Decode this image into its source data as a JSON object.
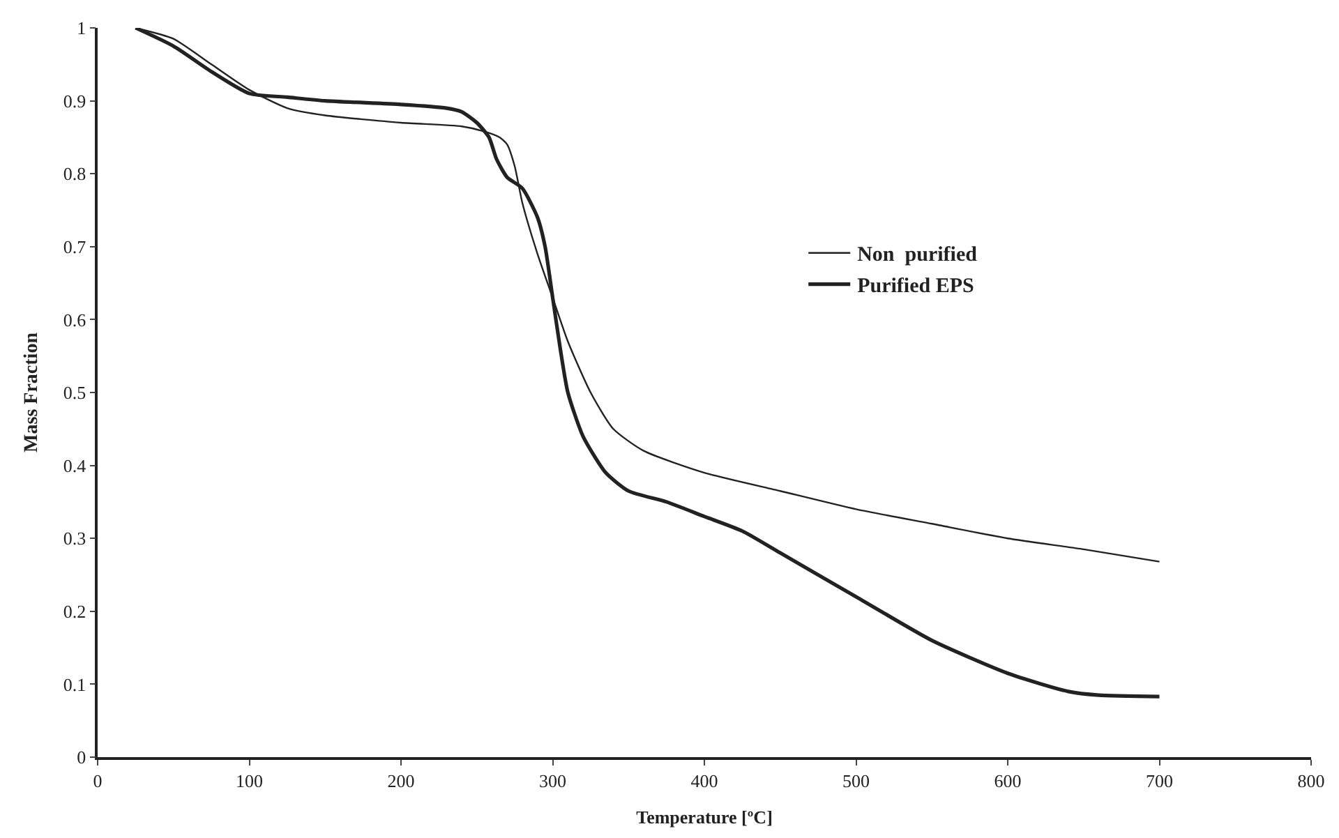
{
  "chart_data": {
    "type": "line",
    "xlabel": "Temperature [ºC]",
    "ylabel": "Mass Fraction",
    "xlim": [
      0,
      800
    ],
    "xticks": [
      0,
      100,
      200,
      300,
      400,
      500,
      600,
      700,
      800
    ],
    "ylim": [
      0,
      1
    ],
    "yticks": [
      0,
      0.1,
      0.2,
      0.3,
      0.4,
      0.5,
      0.6,
      0.7,
      0.8,
      0.9,
      1
    ],
    "legend": "right",
    "marker": "none",
    "line_style": "solid",
    "series": [
      {
        "name": "Non  purified",
        "color": "#222222",
        "x": [
          25,
          50,
          75,
          100,
          125,
          150,
          200,
          240,
          255,
          265,
          270,
          275,
          280,
          290,
          300,
          310,
          325,
          340,
          360,
          400,
          450,
          500,
          550,
          600,
          650,
          700
        ],
        "values": [
          1,
          0.985,
          0.95,
          0.915,
          0.89,
          0.88,
          0.87,
          0.865,
          0.858,
          0.85,
          0.84,
          0.81,
          0.76,
          0.69,
          0.63,
          0.57,
          0.5,
          0.45,
          0.42,
          0.39,
          0.365,
          0.34,
          0.32,
          0.3,
          0.285,
          0.268
        ]
      },
      {
        "name": "Purified EPS",
        "color": "#222222",
        "x": [
          25,
          50,
          75,
          100,
          125,
          150,
          200,
          230,
          240,
          250,
          258,
          263,
          270,
          280,
          290,
          295,
          300,
          305,
          310,
          320,
          335,
          350,
          375,
          400,
          425,
          450,
          500,
          550,
          600,
          640,
          660,
          700
        ],
        "values": [
          1,
          0.975,
          0.94,
          0.91,
          0.905,
          0.9,
          0.895,
          0.89,
          0.885,
          0.87,
          0.85,
          0.82,
          0.795,
          0.78,
          0.74,
          0.7,
          0.63,
          0.56,
          0.5,
          0.44,
          0.39,
          0.365,
          0.35,
          0.33,
          0.31,
          0.28,
          0.22,
          0.16,
          0.115,
          0.09,
          0.085,
          0.083
        ]
      }
    ]
  }
}
